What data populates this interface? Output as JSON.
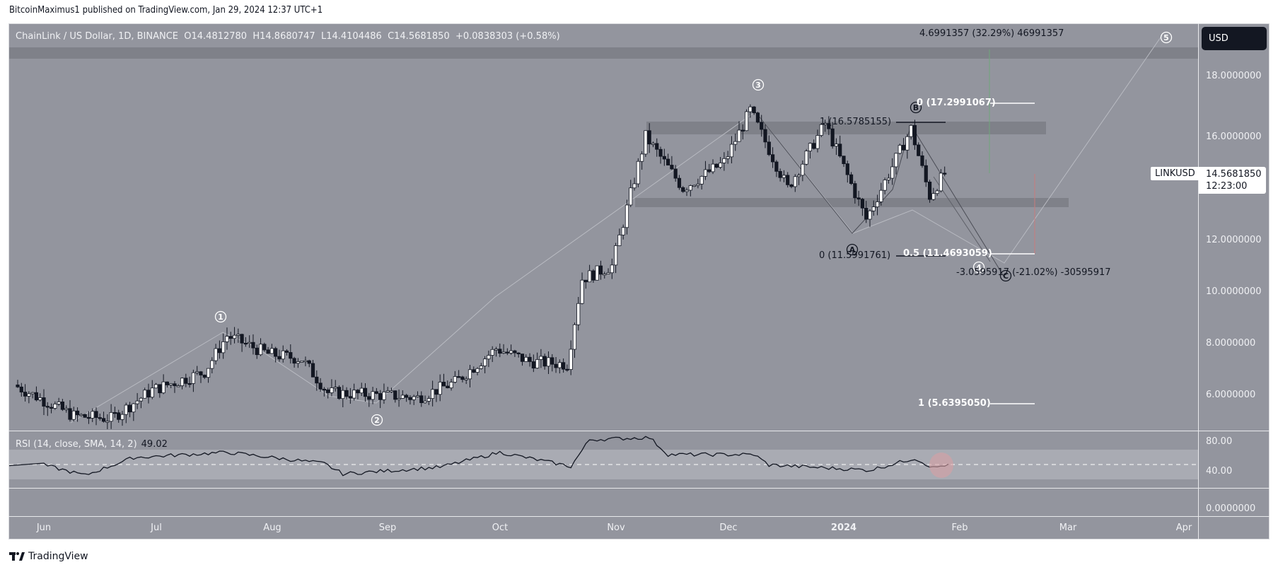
{
  "publisher": "BitcoinMaximus1 published on TradingView.com, Jan 29, 2024 12:37 UTC+1",
  "legend": {
    "symbol": "ChainLink / US Dollar, 1D, BINANCE",
    "o_label": "O",
    "o": "14.4812780",
    "h_label": "H",
    "h": "14.8680747",
    "l_label": "L",
    "l": "14.4104486",
    "c_label": "C",
    "c": "14.5681850",
    "change": "+0.0838303 (+0.58%)"
  },
  "currency_button": "USD",
  "price_axis": [
    "18.0000000",
    "16.0000000",
    "12.0000000",
    "10.0000000",
    "8.0000000",
    "6.0000000"
  ],
  "symbol_tag": "LINKUSD",
  "last_price": "14.5681850",
  "countdown": "12:23:00",
  "rsi": {
    "title": "RSI (14, close, SMA, 14, 2)",
    "value": "49.02",
    "axis": [
      "80.00",
      "40.00",
      "0.0000000"
    ]
  },
  "time_axis": [
    "Jun",
    "Jul",
    "Aug",
    "Sep",
    "Oct",
    "Nov",
    "Dec",
    "2024",
    "Feb",
    "Mar",
    "Apr"
  ],
  "annotations": {
    "projection_top": "4.6991357 (32.29%) 46991357",
    "projection_bottom": "-3.0595917 (-21.02%) -30595917",
    "fib_0_top": "0 (17.2991067)",
    "fib_1_top": "1 (16.5785155)",
    "fib_0_bottom": "0 (11.5991761)",
    "fib_05": "0.5 (11.4693059)",
    "fib_1_bottom": "1 (5.6395050)",
    "wave_labels": [
      "1",
      "2",
      "3",
      "4",
      "5",
      "A",
      "B",
      "C"
    ]
  },
  "footer": "TradingView",
  "colors": {
    "background": "#93959e",
    "up_candle": "#ffffff",
    "down_candle": "#131722",
    "zone": "#7f8189",
    "rsi_band": "#a9abb3",
    "highlight": "#d9a0a4"
  },
  "chart_data": {
    "type": "candlestick",
    "title": "ChainLink / US Dollar, 1D, BINANCE",
    "xlabel": "",
    "ylabel": "USD",
    "ylim": [
      4.5,
      19.5
    ],
    "x_ticks": [
      "Jun",
      "Jul",
      "Aug",
      "Sep",
      "Oct",
      "Nov",
      "Dec",
      "2024",
      "Feb",
      "Mar",
      "Apr"
    ],
    "y_ticks": [
      6,
      8,
      10,
      12,
      16,
      18
    ],
    "ohlc_last": {
      "open": 14.481278,
      "high": 14.8680747,
      "low": 14.4104486,
      "close": 14.568185
    },
    "approx_close_path": [
      {
        "date": "2023-05-25",
        "close": 6.4
      },
      {
        "date": "2023-06-10",
        "close": 5.2
      },
      {
        "date": "2023-06-20",
        "close": 5.1
      },
      {
        "date": "2023-07-01",
        "close": 6.2
      },
      {
        "date": "2023-07-15",
        "close": 6.9
      },
      {
        "date": "2023-07-21",
        "close": 8.3
      },
      {
        "date": "2023-08-01",
        "close": 7.6
      },
      {
        "date": "2023-08-10",
        "close": 7.4
      },
      {
        "date": "2023-08-17",
        "close": 6.1
      },
      {
        "date": "2023-09-01",
        "close": 6.0
      },
      {
        "date": "2023-09-10",
        "close": 5.9
      },
      {
        "date": "2023-09-20",
        "close": 6.5
      },
      {
        "date": "2023-10-01",
        "close": 7.8
      },
      {
        "date": "2023-10-10",
        "close": 7.3
      },
      {
        "date": "2023-10-20",
        "close": 7.2
      },
      {
        "date": "2023-10-24",
        "close": 10.5
      },
      {
        "date": "2023-11-01",
        "close": 11.0
      },
      {
        "date": "2023-11-10",
        "close": 16.0
      },
      {
        "date": "2023-11-20",
        "close": 14.0
      },
      {
        "date": "2023-12-01",
        "close": 15.0
      },
      {
        "date": "2023-12-08",
        "close": 17.0
      },
      {
        "date": "2023-12-18",
        "close": 14.0
      },
      {
        "date": "2023-12-28",
        "close": 16.5
      },
      {
        "date": "2024-01-08",
        "close": 12.8
      },
      {
        "date": "2024-01-20",
        "close": 16.3
      },
      {
        "date": "2024-01-25",
        "close": 13.7
      },
      {
        "date": "2024-01-29",
        "close": 14.57
      }
    ],
    "horizontal_zones": [
      {
        "name": "resistance",
        "from": 16.2,
        "to": 16.7
      },
      {
        "name": "support",
        "from": 13.5,
        "to": 13.85
      },
      {
        "name": "top band",
        "from": 19.0,
        "to": 19.4
      }
    ],
    "fib_levels": [
      {
        "label": "0",
        "value": 17.2991067
      },
      {
        "label": "1",
        "value": 16.5785155
      },
      {
        "label": "0",
        "value": 11.5991761
      },
      {
        "label": "0.5",
        "value": 11.4693059
      },
      {
        "label": "1",
        "value": 5.639505
      }
    ],
    "elliott_waves": [
      {
        "label": "1",
        "date": "2023-07-21",
        "price": 8.4
      },
      {
        "label": "2",
        "date": "2023-09-10",
        "price": 5.8
      },
      {
        "label": "3",
        "date": "2023-12-08",
        "price": 17.3
      },
      {
        "label": "A",
        "date": "2024-01-08",
        "price": 12.2
      },
      {
        "label": "B",
        "date": "2024-01-20",
        "price": 16.6
      },
      {
        "label": "C",
        "date": "2024-02-12",
        "price": 11.2
      },
      {
        "label": "4",
        "date": "2024-02-10",
        "price": 11.4
      },
      {
        "label": "5",
        "date": "2024-03-31",
        "price": 19.6
      }
    ],
    "projections": [
      {
        "label": "4.6991357 (32.29%) 46991357",
        "direction": "up"
      },
      {
        "label": "-3.0595917 (-21.02%) -30595917",
        "direction": "down"
      }
    ],
    "rsi": {
      "params": "14, close, SMA, 14, 2",
      "current": 49.02,
      "ylim": [
        0,
        100
      ],
      "y_ticks": [
        0,
        40,
        80
      ],
      "band": [
        30,
        70
      ],
      "midline": 50,
      "approx_path": [
        {
          "date": "2023-06-01",
          "value": 48
        },
        {
          "date": "2023-06-12",
          "value": 34
        },
        {
          "date": "2023-06-25",
          "value": 58
        },
        {
          "date": "2023-07-20",
          "value": 65
        },
        {
          "date": "2023-08-15",
          "value": 50
        },
        {
          "date": "2023-08-20",
          "value": 36
        },
        {
          "date": "2023-09-15",
          "value": 45
        },
        {
          "date": "2023-10-01",
          "value": 65
        },
        {
          "date": "2023-10-20",
          "value": 46
        },
        {
          "date": "2023-10-25",
          "value": 82
        },
        {
          "date": "2023-11-10",
          "value": 85
        },
        {
          "date": "2023-11-15",
          "value": 62
        },
        {
          "date": "2023-12-08",
          "value": 62
        },
        {
          "date": "2023-12-12",
          "value": 48
        },
        {
          "date": "2024-01-08",
          "value": 41
        },
        {
          "date": "2024-01-20",
          "value": 57
        },
        {
          "date": "2024-01-25",
          "value": 44
        },
        {
          "date": "2024-01-29",
          "value": 49.02
        }
      ]
    }
  }
}
